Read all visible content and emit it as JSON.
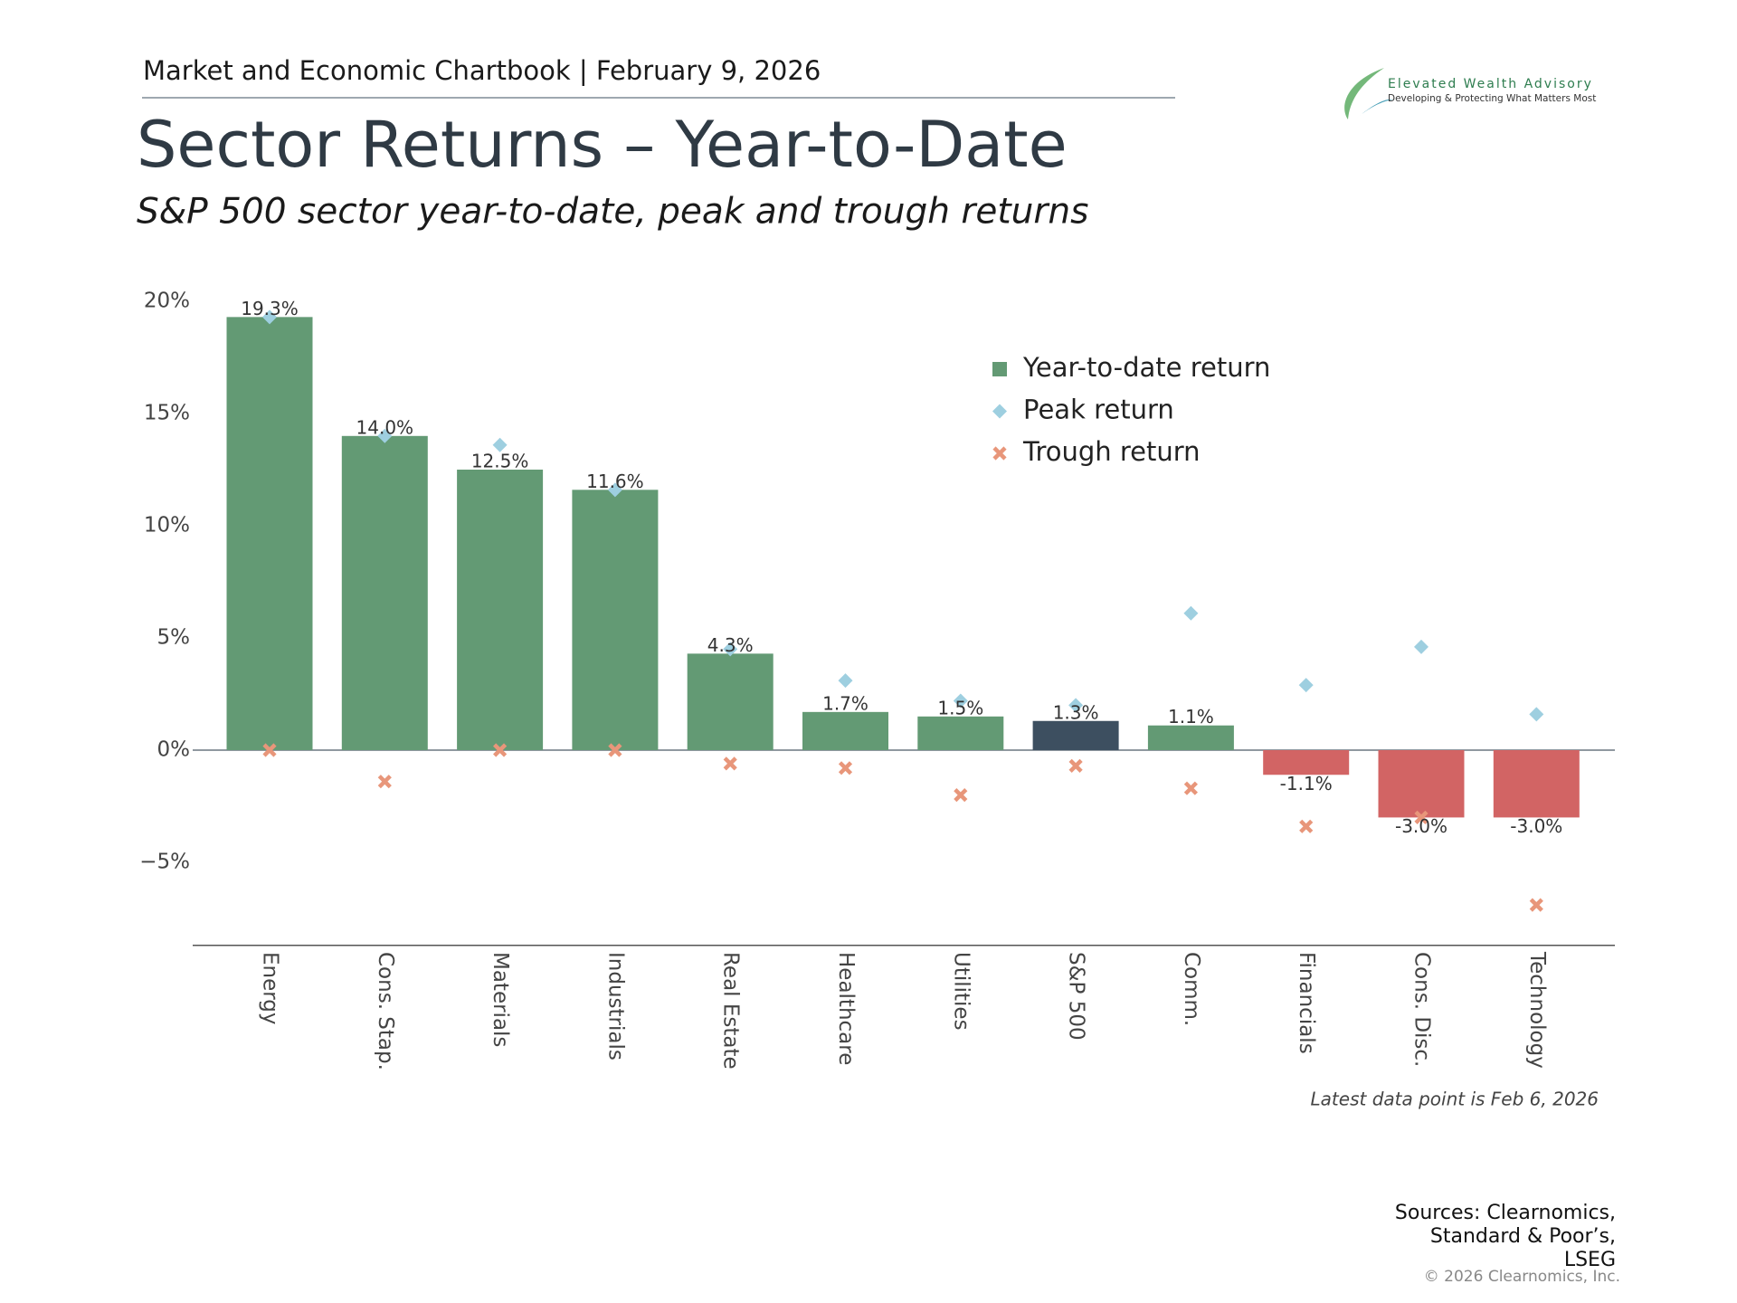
{
  "header": {
    "kicker": "Market and Economic Chartbook | February 9, 2026",
    "brand": "Elevated Wealth Advisory",
    "tagline": "Developing & Protecting What Matters Most"
  },
  "chart_data": {
    "type": "bar",
    "title": "Sector Returns – Year-to-Date",
    "subtitle": "S&P 500 sector year-to-date, peak and trough returns",
    "categories": [
      "Energy",
      "Cons. Stap.",
      "Materials",
      "Industrials",
      "Real Estate",
      "Healthcare",
      "Utilities",
      "S&P 500",
      "Comm.",
      "Financials",
      "Cons. Disc.",
      "Technology"
    ],
    "series": [
      {
        "name": "Year-to-date return",
        "type": "bar",
        "color": "#639a74",
        "colors": [
          "#639a74",
          "#639a74",
          "#639a74",
          "#639a74",
          "#639a74",
          "#639a74",
          "#639a74",
          "#3d4f60",
          "#639a74",
          "#d26464",
          "#d26464",
          "#d26464"
        ],
        "values": [
          19.3,
          14.0,
          12.5,
          11.6,
          4.3,
          1.7,
          1.5,
          1.3,
          1.1,
          -1.1,
          -3.0,
          -3.0
        ],
        "value_labels": [
          "19.3%",
          "14.0%",
          "12.5%",
          "11.6%",
          "4.3%",
          "1.7%",
          "1.5%",
          "1.3%",
          "1.1%",
          "-1.1%",
          "-3.0%",
          "-3.0%"
        ]
      },
      {
        "name": "Peak return",
        "type": "scatter",
        "marker": "diamond",
        "color": "#9ecfe0",
        "values": [
          19.3,
          14.0,
          13.6,
          11.6,
          4.5,
          3.1,
          2.2,
          2.0,
          6.1,
          2.9,
          4.6,
          1.6
        ]
      },
      {
        "name": "Trough return",
        "type": "scatter",
        "marker": "x",
        "color": "#e8967a",
        "values": [
          0.0,
          -1.4,
          0.0,
          0.0,
          -0.6,
          -0.8,
          -2.0,
          -0.7,
          -1.7,
          -3.4,
          -3.0,
          -6.9
        ]
      }
    ],
    "ylim": [
      -8.7,
      20.5
    ],
    "yticks": [
      {
        "value": -5,
        "label": "−5%"
      },
      {
        "value": 0,
        "label": "0%"
      },
      {
        "value": 5,
        "label": "5%"
      },
      {
        "value": 10,
        "label": "10%"
      },
      {
        "value": 15,
        "label": "15%"
      },
      {
        "value": 20,
        "label": "20%"
      }
    ],
    "grid": false,
    "legend": "top-right",
    "note": "Latest data point is Feb 6, 2026"
  },
  "footer": {
    "sources": [
      "Sources: Clearnomics,",
      "Standard & Poor’s,",
      "LSEG"
    ],
    "copyright": "© 2026 Clearnomics, Inc."
  }
}
